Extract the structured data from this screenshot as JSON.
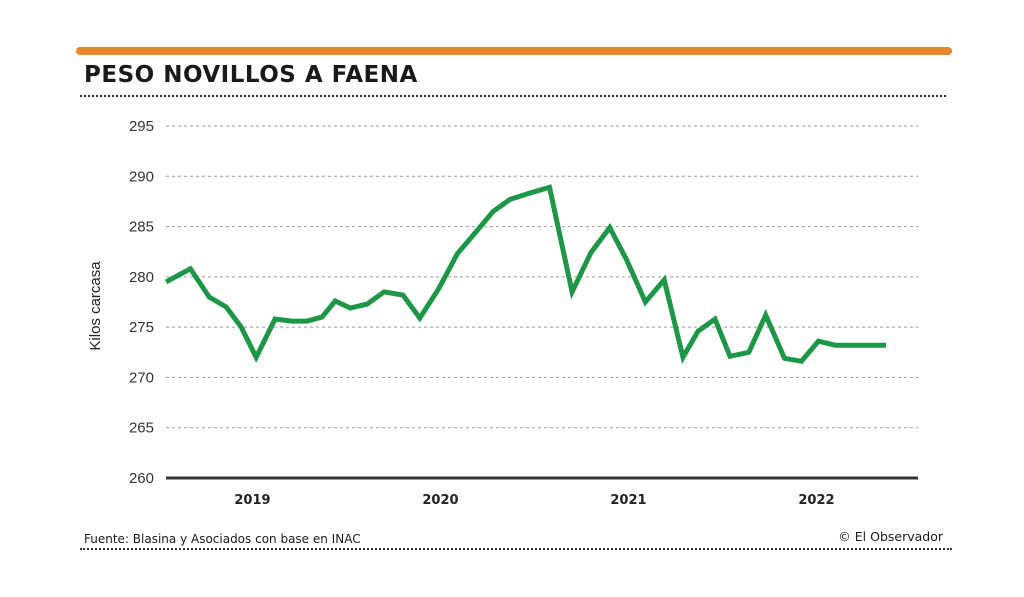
{
  "colors": {
    "accent_bar": "#e8882c",
    "line": "#1e9648",
    "grid": "#9a9a9a",
    "baseline": "#333333"
  },
  "header": {
    "title": "PESO NOVILLOS A FAENA"
  },
  "footer": {
    "source": "Fuente: Blasina y Asociados con base en INAC",
    "credit": "© El Observador"
  },
  "chart_data": {
    "type": "line",
    "title": "PESO NOVILLOS A FAENA",
    "xlabel": "",
    "ylabel": "Kilos  carcasa",
    "ylim": [
      260,
      295
    ],
    "yticks": [
      260,
      265,
      270,
      275,
      280,
      285,
      290,
      295
    ],
    "xlim": [
      2018.6,
      2022.6
    ],
    "xticks": [
      {
        "label": "2019",
        "value": 2019.06
      },
      {
        "label": "2020",
        "value": 2020.06
      },
      {
        "label": "2021",
        "value": 2021.06
      },
      {
        "label": "2022",
        "value": 2022.06
      }
    ],
    "grid": true,
    "series": [
      {
        "name": "Peso novillos a faena",
        "x": [
          2018.6,
          2018.73,
          2018.83,
          2018.92,
          2019.0,
          2019.08,
          2019.18,
          2019.27,
          2019.35,
          2019.43,
          2019.5,
          2019.58,
          2019.67,
          2019.76,
          2019.86,
          2019.95,
          2020.05,
          2020.15,
          2020.25,
          2020.34,
          2020.43,
          2020.53,
          2020.64,
          2020.76,
          2020.86,
          2020.96,
          2021.05,
          2021.15,
          2021.25,
          2021.35,
          2021.43,
          2021.52,
          2021.6,
          2021.7,
          2021.79,
          2021.89,
          2021.98,
          2022.07,
          2022.16,
          2022.25,
          2022.34,
          2022.43
        ],
        "values": [
          279.5,
          280.8,
          278.0,
          277.0,
          275.0,
          272.0,
          275.8,
          275.6,
          275.6,
          276.0,
          277.6,
          276.9,
          277.3,
          278.5,
          278.2,
          275.9,
          278.8,
          282.3,
          284.5,
          286.5,
          287.7,
          288.3,
          288.9,
          278.5,
          282.4,
          284.9,
          281.7,
          277.5,
          279.7,
          272.0,
          274.6,
          275.8,
          272.1,
          272.5,
          276.2,
          271.9,
          271.6,
          273.6,
          273.2,
          273.2,
          273.2,
          273.2
        ]
      }
    ]
  }
}
